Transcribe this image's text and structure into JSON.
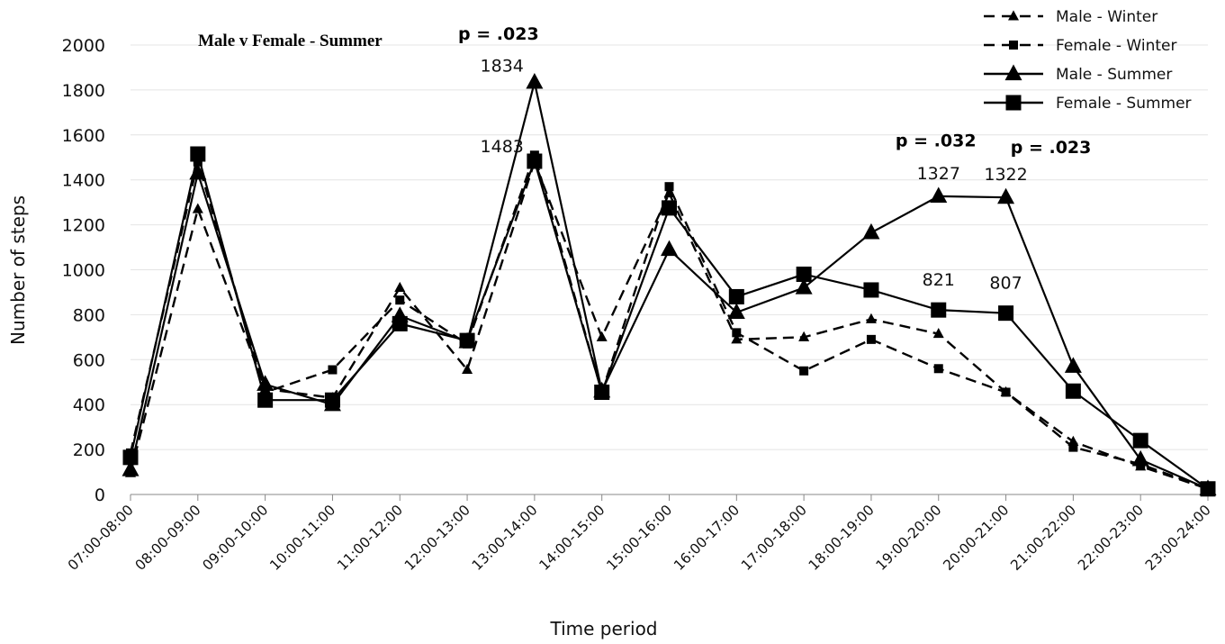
{
  "chart_data": {
    "type": "line",
    "title": "Male v Female - Summer",
    "xlabel": "Time period",
    "ylabel": "Number of steps",
    "ylim": [
      0,
      2000
    ],
    "y_ticks": [
      0,
      200,
      400,
      600,
      800,
      1000,
      1200,
      1400,
      1600,
      1800,
      2000
    ],
    "grid": true,
    "legend_position": "top-right",
    "categories": [
      "07:00-08:00",
      "08:00-09:00",
      "09:00-10:00",
      "10:00-11:00",
      "11:00-12:00",
      "12:00-13:00",
      "13:00-14:00",
      "14:00-15:00",
      "15:00-16:00",
      "16:00-17:00",
      "17:00-18:00",
      "18:00-19:00",
      "19:00-20:00",
      "20:00-21:00",
      "21:00-22:00",
      "22:00-23:00",
      "23:00-24:00"
    ],
    "series": [
      {
        "name": "Male - Winter",
        "line": "dashed",
        "marker": "triangle-small",
        "values": [
          95,
          1270,
          470,
          430,
          920,
          555,
          1480,
          700,
          1340,
          690,
          700,
          780,
          715,
          455,
          235,
          125,
          25
        ]
      },
      {
        "name": "Female - Winter",
        "line": "dashed",
        "marker": "square-small",
        "values": [
          185,
          1480,
          455,
          555,
          865,
          670,
          1510,
          455,
          1370,
          720,
          550,
          690,
          560,
          455,
          210,
          135,
          25
        ]
      },
      {
        "name": "Male - Summer",
        "line": "solid",
        "marker": "triangle-large",
        "values": [
          110,
          1430,
          490,
          400,
          795,
          680,
          1834,
          460,
          1090,
          810,
          920,
          1165,
          1327,
          1322,
          570,
          155,
          25
        ]
      },
      {
        "name": "Female - Summer",
        "line": "solid",
        "marker": "square-large",
        "values": [
          165,
          1515,
          420,
          420,
          760,
          685,
          1483,
          455,
          1275,
          880,
          980,
          910,
          821,
          807,
          460,
          240,
          25
        ]
      }
    ],
    "annotations": [
      {
        "text": "p = .023",
        "kind": "pvalue",
        "category": "13:00-14:00",
        "y": 2025
      },
      {
        "text": "p = .032",
        "kind": "pvalue",
        "category": "19:00-20:00",
        "y": 1550
      },
      {
        "text": "p = .023",
        "kind": "pvalue",
        "category": "20:00-21:00",
        "y": 1520
      },
      {
        "text": "1834",
        "kind": "value",
        "category": "13:00-14:00",
        "y": 1834
      },
      {
        "text": "1483",
        "kind": "value",
        "category": "13:00-14:00",
        "y": 1483
      },
      {
        "text": "1327",
        "kind": "value",
        "category": "19:00-20:00",
        "y": 1327
      },
      {
        "text": "1322",
        "kind": "value",
        "category": "20:00-21:00",
        "y": 1322
      },
      {
        "text": "821",
        "kind": "value",
        "category": "19:00-20:00",
        "y": 821
      },
      {
        "text": "807",
        "kind": "value",
        "category": "20:00-21:00",
        "y": 807
      }
    ]
  }
}
